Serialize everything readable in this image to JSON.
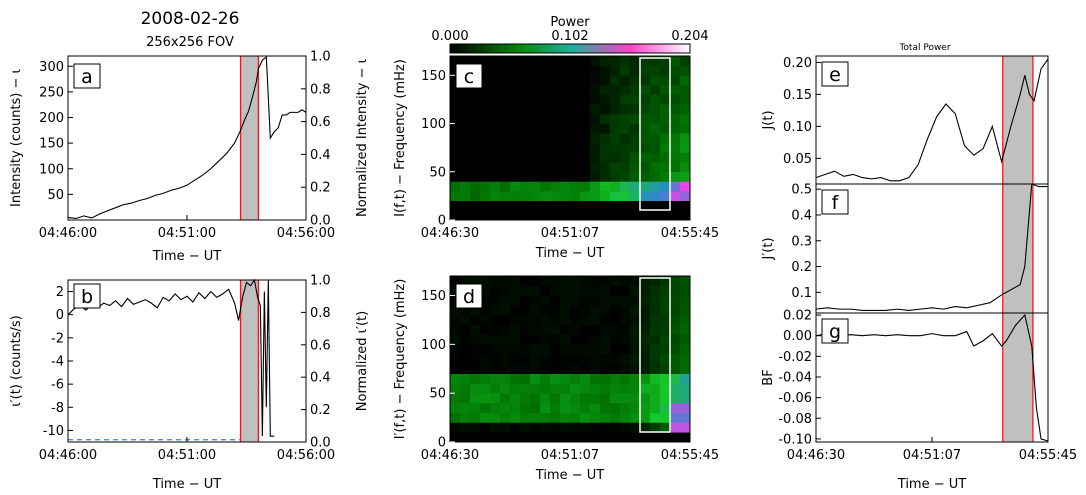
{
  "figure": {
    "date": "2008-02-26",
    "fov": "256x256 FOV",
    "total_power_title": "Total Power",
    "colorbar": {
      "label": "Power",
      "ticks": [
        "0.000",
        "0.102",
        "0.204"
      ],
      "range": [
        0,
        0.204
      ]
    },
    "colors": {
      "highlight_line": "#e02020",
      "shade": "#c0c0c0",
      "trace": "#000000",
      "dashed": "#4a90e2",
      "box": "#ffffff"
    }
  },
  "chart_data": [
    {
      "id": "a",
      "type": "line",
      "panel_letter": "a",
      "xlabel": "Time − UT",
      "ylabel": "Intensity (counts) − ι",
      "y2label": "Normalized Intensity − ι",
      "xticks": [
        "04:46:00",
        "04:51:00",
        "04:56:00"
      ],
      "xlim": [
        0,
        600
      ],
      "yticks": [
        "50",
        "100",
        "150",
        "200",
        "250",
        "300"
      ],
      "ylim": [
        0,
        320
      ],
      "y2ticks": [
        "0.0",
        "0.2",
        "0.4",
        "0.6",
        "0.8",
        "1.0"
      ],
      "y2lim": [
        0,
        1.0
      ],
      "shade": [
        435,
        480
      ],
      "redlines": [
        435,
        480
      ],
      "x": [
        0,
        20,
        40,
        60,
        80,
        100,
        120,
        140,
        160,
        180,
        200,
        220,
        240,
        260,
        280,
        300,
        320,
        340,
        360,
        380,
        400,
        420,
        435,
        445,
        455,
        465,
        475,
        480,
        490,
        500,
        510,
        520,
        530,
        540,
        550,
        560,
        570,
        580,
        590,
        600
      ],
      "y": [
        5,
        3,
        8,
        4,
        12,
        18,
        24,
        30,
        33,
        38,
        42,
        48,
        52,
        58,
        62,
        68,
        78,
        88,
        100,
        115,
        130,
        150,
        175,
        195,
        212,
        240,
        270,
        295,
        312,
        318,
        160,
        172,
        180,
        205,
        205,
        210,
        210,
        210,
        215,
        210
      ]
    },
    {
      "id": "b",
      "type": "line",
      "panel_letter": "b",
      "xlabel": "Time − UT",
      "ylabel": "ι′(t) (counts/s)",
      "y2label": "Normalized ι′(t)",
      "xticks": [
        "04:46:00",
        "04:51:00",
        "04:56:00"
      ],
      "xlim": [
        0,
        600
      ],
      "yticks": [
        "-10",
        "-8",
        "-6",
        "-4",
        "-2",
        "0",
        "2"
      ],
      "ylim": [
        -11,
        3
      ],
      "y2ticks": [
        "0.0",
        "0.2",
        "0.4",
        "0.6",
        "0.8",
        "1.0"
      ],
      "y2lim": [
        0,
        1.0
      ],
      "shade": [
        435,
        480
      ],
      "redlines": [
        435,
        480
      ],
      "baseline_dashed": -10.8,
      "x": [
        0,
        15,
        30,
        45,
        60,
        75,
        90,
        105,
        120,
        135,
        150,
        165,
        180,
        195,
        210,
        225,
        240,
        255,
        270,
        285,
        300,
        315,
        330,
        345,
        360,
        375,
        390,
        405,
        420,
        430,
        440,
        450,
        460,
        470,
        478,
        485,
        490,
        495,
        500,
        505,
        510,
        520
      ],
      "y": [
        0.0,
        0.5,
        0.8,
        0.4,
        0.9,
        0.6,
        1.0,
        0.8,
        1.2,
        0.7,
        1.4,
        0.9,
        1.1,
        1.3,
        1.0,
        0.6,
        1.5,
        1.2,
        1.8,
        1.3,
        1.6,
        1.1,
        1.9,
        1.4,
        2.0,
        1.5,
        1.8,
        2.2,
        1.0,
        -0.5,
        1.5,
        2.8,
        2.5,
        3.0,
        1.5,
        0.8,
        -10.5,
        2.0,
        -8.0,
        3.0,
        -10.5,
        -10.5
      ]
    },
    {
      "id": "c",
      "type": "heatmap",
      "panel_letter": "c",
      "xlabel": "Time − UT",
      "ylabel": "I(f,t) − Frequency (mHz)",
      "xticks": [
        "04:46:30",
        "04:51:07",
        "04:55:45"
      ],
      "yticks": [
        "0",
        "50",
        "100",
        "150"
      ],
      "ylim": [
        0,
        170
      ],
      "grid_cols": 24,
      "grid_rows": 17,
      "box_cols": [
        19,
        22
      ]
    },
    {
      "id": "d",
      "type": "heatmap",
      "panel_letter": "d",
      "xlabel": "Time − UT",
      "ylabel": "I′(f,t) − Frequency (mHz)",
      "xticks": [
        "04:46:30",
        "04:51:07",
        "04:55:45"
      ],
      "yticks": [
        "0",
        "50",
        "100",
        "150"
      ],
      "ylim": [
        0,
        170
      ],
      "grid_cols": 24,
      "grid_rows": 17,
      "box_cols": [
        19,
        22
      ]
    },
    {
      "id": "e",
      "type": "line",
      "panel_letter": "e",
      "ylabel": "J(t)",
      "yticks": [
        "0.05",
        "0.10",
        "0.15",
        "0.20"
      ],
      "ylim": [
        0.01,
        0.21
      ],
      "shade_frac": [
        0.805,
        0.935
      ],
      "x": [
        0,
        0.04,
        0.08,
        0.12,
        0.16,
        0.2,
        0.24,
        0.28,
        0.32,
        0.36,
        0.4,
        0.44,
        0.48,
        0.52,
        0.56,
        0.6,
        0.64,
        0.68,
        0.72,
        0.76,
        0.8,
        0.84,
        0.88,
        0.9,
        0.92,
        0.94,
        0.97,
        1.0
      ],
      "y": [
        0.02,
        0.025,
        0.03,
        0.022,
        0.025,
        0.02,
        0.018,
        0.02,
        0.015,
        0.015,
        0.02,
        0.04,
        0.08,
        0.115,
        0.135,
        0.12,
        0.07,
        0.055,
        0.065,
        0.1,
        0.045,
        0.1,
        0.15,
        0.18,
        0.15,
        0.14,
        0.19,
        0.205
      ]
    },
    {
      "id": "f",
      "type": "line",
      "panel_letter": "f",
      "xlabel": "Time − UT",
      "ylabel": "J′(t)",
      "xticks": [
        "04:46:30",
        "04:51:07",
        "04:55:45"
      ],
      "yticks": [
        "0.1",
        "0.2",
        "0.3",
        "0.4",
        "0.5"
      ],
      "ylim": [
        0.02,
        0.52
      ],
      "shade_frac": [
        0.805,
        0.935
      ],
      "x": [
        0,
        0.05,
        0.1,
        0.15,
        0.2,
        0.25,
        0.3,
        0.35,
        0.4,
        0.45,
        0.5,
        0.55,
        0.6,
        0.65,
        0.7,
        0.75,
        0.8,
        0.82,
        0.86,
        0.88,
        0.9,
        0.93,
        0.96,
        1.0
      ],
      "y": [
        0.035,
        0.04,
        0.035,
        0.035,
        0.03,
        0.03,
        0.03,
        0.035,
        0.03,
        0.035,
        0.04,
        0.035,
        0.045,
        0.04,
        0.05,
        0.06,
        0.09,
        0.1,
        0.12,
        0.13,
        0.2,
        0.52,
        0.51,
        0.51
      ]
    },
    {
      "id": "g",
      "type": "line",
      "panel_letter": "g",
      "ylabel": "BF",
      "yticks": [
        "-0.10",
        "-0.08",
        "-0.06",
        "-0.04",
        "-0.02",
        "0.00",
        "0.02"
      ],
      "ylim": [
        -0.103,
        0.022
      ],
      "shade_frac": [
        0.805,
        0.935
      ],
      "x": [
        0,
        0.05,
        0.1,
        0.15,
        0.2,
        0.25,
        0.3,
        0.35,
        0.4,
        0.45,
        0.5,
        0.55,
        0.6,
        0.65,
        0.68,
        0.72,
        0.76,
        0.8,
        0.82,
        0.86,
        0.9,
        0.93,
        0.95,
        0.97,
        1.0
      ],
      "y": [
        0.0,
        0.002,
        0.0,
        0.001,
        0.0,
        0.001,
        0.0,
        0.001,
        0.0,
        0.0,
        0.002,
        0.0,
        0.0,
        0.004,
        -0.01,
        -0.005,
        0.002,
        -0.01,
        -0.005,
        0.01,
        0.02,
        -0.01,
        -0.07,
        -0.1,
        -0.102
      ]
    }
  ]
}
